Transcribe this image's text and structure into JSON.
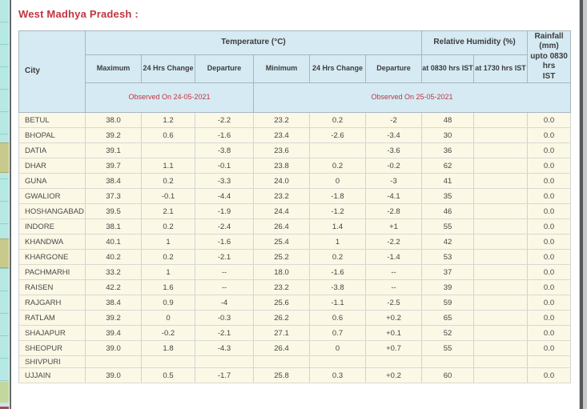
{
  "page": {
    "title": "West Madhya Pradesh :"
  },
  "table": {
    "header": {
      "city": "City",
      "temperature_group": "Temperature (°C)",
      "humidity_group": "Relative Humidity (%)",
      "rainfall_lines": [
        "Rainfall (mm)",
        "upto 0830 hrs",
        "IST"
      ],
      "sub": [
        "Maximum",
        "24 Hrs Change",
        "Departure",
        "Minimum",
        "24 Hrs Change",
        "Departure",
        "at 0830 hrs IST",
        "at 1730 hrs IST"
      ],
      "observed_left": "Observed On 24-05-2021",
      "observed_right": "Observed On 25-05-2021"
    },
    "rows": [
      {
        "city": "BETUL",
        "max": "38.0",
        "max_change": "1.2",
        "max_dep": "-2.2",
        "min": "23.2",
        "min_change": "0.2",
        "min_dep": "-2",
        "rh_0830": "48",
        "rh_1730": "",
        "rain": "0.0"
      },
      {
        "city": "BHOPAL",
        "max": "39.2",
        "max_change": "0.6",
        "max_dep": "-1.6",
        "min": "23.4",
        "min_change": "-2.6",
        "min_dep": "-3.4",
        "rh_0830": "30",
        "rh_1730": "",
        "rain": "0.0"
      },
      {
        "city": "DATIA",
        "max": "39.1",
        "max_change": "",
        "max_dep": "-3.8",
        "min": "23.6",
        "min_change": "",
        "min_dep": "-3.6",
        "rh_0830": "36",
        "rh_1730": "",
        "rain": "0.0"
      },
      {
        "city": "DHAR",
        "max": "39.7",
        "max_change": "1.1",
        "max_dep": "-0.1",
        "min": "23.8",
        "min_change": "0.2",
        "min_dep": "-0.2",
        "rh_0830": "62",
        "rh_1730": "",
        "rain": "0.0"
      },
      {
        "city": "GUNA",
        "max": "38.4",
        "max_change": "0.2",
        "max_dep": "-3.3",
        "min": "24.0",
        "min_change": "0",
        "min_dep": "-3",
        "rh_0830": "41",
        "rh_1730": "",
        "rain": "0.0"
      },
      {
        "city": "GWALIOR",
        "max": "37.3",
        "max_change": "-0.1",
        "max_dep": "-4.4",
        "min": "23.2",
        "min_change": "-1.8",
        "min_dep": "-4.1",
        "rh_0830": "35",
        "rh_1730": "",
        "rain": "0.0"
      },
      {
        "city": "HOSHANGABAD",
        "max": "39.5",
        "max_change": "2.1",
        "max_dep": "-1.9",
        "min": "24.4",
        "min_change": "-1.2",
        "min_dep": "-2.8",
        "rh_0830": "46",
        "rh_1730": "",
        "rain": "0.0"
      },
      {
        "city": "INDORE",
        "max": "38.1",
        "max_change": "0.2",
        "max_dep": "-2.4",
        "min": "26.4",
        "min_change": "1.4",
        "min_dep": "+1",
        "rh_0830": "55",
        "rh_1730": "",
        "rain": "0.0"
      },
      {
        "city": "KHANDWA",
        "max": "40.1",
        "max_change": "1",
        "max_dep": "-1.6",
        "min": "25.4",
        "min_change": "1",
        "min_dep": "-2.2",
        "rh_0830": "42",
        "rh_1730": "",
        "rain": "0.0"
      },
      {
        "city": "KHARGONE",
        "max": "40.2",
        "max_change": "0.2",
        "max_dep": "-2.1",
        "min": "25.2",
        "min_change": "0.2",
        "min_dep": "-1.4",
        "rh_0830": "53",
        "rh_1730": "",
        "rain": "0.0"
      },
      {
        "city": "PACHMARHI",
        "max": "33.2",
        "max_change": "1",
        "max_dep": "--",
        "min": "18.0",
        "min_change": "-1.6",
        "min_dep": "--",
        "rh_0830": "37",
        "rh_1730": "",
        "rain": "0.0"
      },
      {
        "city": "RAISEN",
        "max": "42.2",
        "max_change": "1.6",
        "max_dep": "--",
        "min": "23.2",
        "min_change": "-3.8",
        "min_dep": "--",
        "rh_0830": "39",
        "rh_1730": "",
        "rain": "0.0"
      },
      {
        "city": "RAJGARH",
        "max": "38.4",
        "max_change": "0.9",
        "max_dep": "-4",
        "min": "25.6",
        "min_change": "-1.1",
        "min_dep": "-2.5",
        "rh_0830": "59",
        "rh_1730": "",
        "rain": "0.0"
      },
      {
        "city": "RATLAM",
        "max": "39.2",
        "max_change": "0",
        "max_dep": "-0.3",
        "min": "26.2",
        "min_change": "0.6",
        "min_dep": "+0.2",
        "rh_0830": "65",
        "rh_1730": "",
        "rain": "0.0"
      },
      {
        "city": "SHAJAPUR",
        "max": "39.4",
        "max_change": "-0.2",
        "max_dep": "-2.1",
        "min": "27.1",
        "min_change": "0.7",
        "min_dep": "+0.1",
        "rh_0830": "52",
        "rh_1730": "",
        "rain": "0.0"
      },
      {
        "city": "SHEOPUR",
        "max": "39.0",
        "max_change": "1.8",
        "max_dep": "-4.3",
        "min": "26.4",
        "min_change": "0",
        "min_dep": "+0.7",
        "rh_0830": "55",
        "rh_1730": "",
        "rain": "0.0"
      },
      {
        "city": "SHIVPURI",
        "max": "",
        "max_change": "",
        "max_dep": "",
        "min": "",
        "min_change": "",
        "min_dep": "",
        "rh_0830": "",
        "rh_1730": "",
        "rain": ""
      },
      {
        "city": "UJJAIN",
        "max": "39.0",
        "max_change": "0.5",
        "max_dep": "-1.7",
        "min": "25.8",
        "min_change": "0.3",
        "min_dep": "+0.2",
        "rh_0830": "60",
        "rh_1730": "",
        "rain": "0.0"
      }
    ]
  },
  "colors": {
    "accent_red": "#c23440",
    "header_bg": "#d6eaf3",
    "row_bg": "#fbf8e6",
    "strip_cyan": "#b6e8e4",
    "strip_olive": "#c8ca8c",
    "divider_dark": "#62686b"
  }
}
